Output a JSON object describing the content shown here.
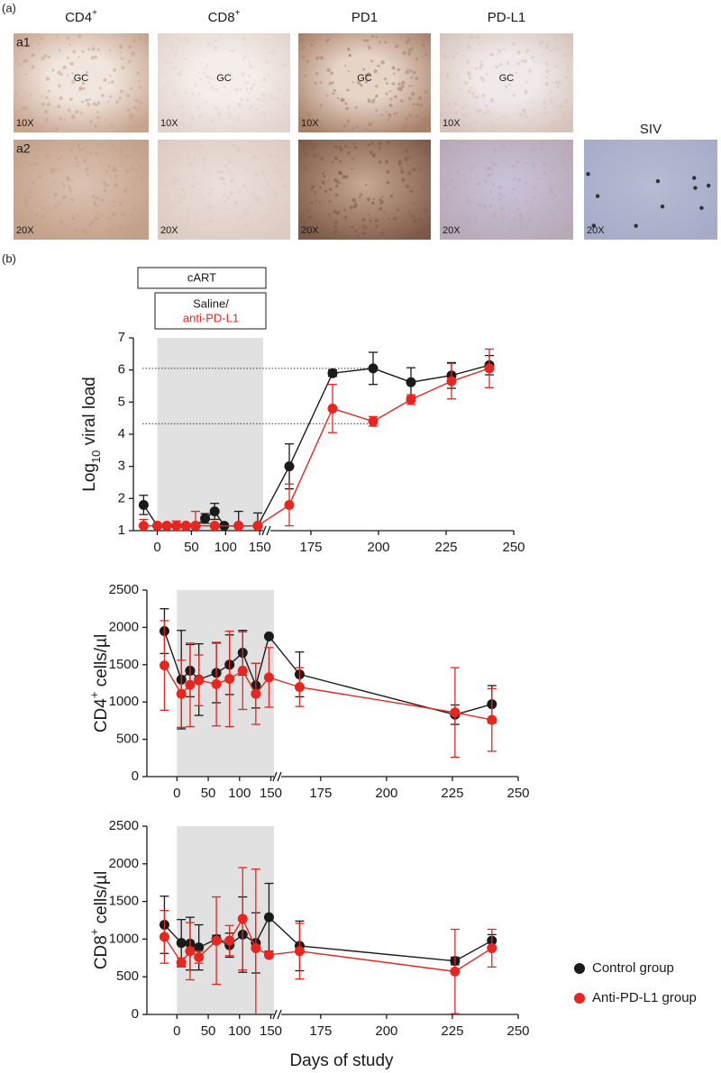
{
  "panel_a": {
    "label": "(a)",
    "columns": [
      {
        "text": "CD4",
        "sup": "+"
      },
      {
        "text": "CD8",
        "sup": "+"
      },
      {
        "text": "PD1"
      },
      {
        "text": "PD-L1"
      },
      {
        "text": "SIV"
      }
    ],
    "rows": [
      {
        "label": "a1",
        "images": [
          {
            "region": "GC",
            "magnification": "10X"
          },
          {
            "region": "GC",
            "magnification": "10X"
          },
          {
            "region": "GC",
            "magnification": "10X"
          },
          {
            "region": "GC",
            "magnification": "10X"
          }
        ]
      },
      {
        "label": "a2",
        "images": [
          {
            "magnification": "20X"
          },
          {
            "magnification": "20X"
          },
          {
            "magnification": "20X"
          },
          {
            "magnification": "20X"
          },
          {
            "magnification": "20X"
          }
        ]
      }
    ]
  },
  "panel_b": {
    "label": "(b)",
    "treatment": "cART",
    "arms": [
      "Saline/",
      "anti-PD-L1"
    ],
    "arm_colors": [
      "#1a1a1a",
      "#e8251f"
    ]
  },
  "chart_data": [
    {
      "type": "line",
      "y_label": {
        "text": "Log",
        "sub": "10",
        "after": " viral load"
      },
      "xlim": [
        -35,
        250
      ],
      "x_break": [
        155,
        160
      ],
      "xticks": [
        0,
        50,
        100,
        150,
        175,
        200,
        225,
        250
      ],
      "ylim": [
        1,
        7
      ],
      "yticks": [
        1,
        2,
        3,
        4,
        5,
        6,
        7
      ],
      "shade": [
        0,
        155
      ],
      "reference_lines": [
        6.05,
        4.33
      ],
      "series": [
        {
          "color": "#1a1a1a",
          "x": [
            -20,
            0,
            14,
            28,
            42,
            56,
            70,
            84,
            98,
            119,
            147,
            167,
            183,
            198,
            212,
            227,
            241
          ],
          "values": [
            1.8,
            1.15,
            1.15,
            1.15,
            1.15,
            1.15,
            1.38,
            1.6,
            1.15,
            1.15,
            1.15,
            3.0,
            5.9,
            6.05,
            5.62,
            5.83,
            6.15
          ],
          "errors": [
            0.3,
            0,
            0,
            0,
            0,
            0,
            0.15,
            0.25,
            0,
            0.45,
            0.4,
            0.7,
            0.1,
            0.5,
            0.45,
            0.4,
            0.3
          ]
        },
        {
          "color": "#e8251f",
          "x": [
            -20,
            0,
            14,
            28,
            42,
            56,
            84,
            119,
            147,
            167,
            183,
            198,
            212,
            227,
            241
          ],
          "values": [
            1.15,
            1.15,
            1.15,
            1.15,
            1.15,
            1.15,
            1.15,
            1.15,
            1.15,
            1.8,
            4.8,
            4.4,
            5.08,
            5.65,
            6.05
          ],
          "errors": [
            0.2,
            0,
            0,
            0.15,
            0,
            0.45,
            0,
            0,
            0,
            0.65,
            0.75,
            0.15,
            0.15,
            0.55,
            0.6
          ]
        }
      ]
    },
    {
      "type": "line",
      "y_label": {
        "text": "CD4",
        "sup": "+",
        "after": " cells/µl"
      },
      "xlim": [
        -48,
        250
      ],
      "x_break": [
        155,
        160
      ],
      "xticks": [
        0,
        50,
        100,
        150,
        175,
        200,
        225,
        250
      ],
      "ylim": [
        0,
        2500
      ],
      "yticks": [
        0,
        500,
        1000,
        1500,
        2000,
        2500
      ],
      "shade": [
        0,
        155
      ],
      "series": [
        {
          "color": "#1a1a1a",
          "x": [
            -20,
            7,
            21,
            35,
            63,
            84,
            105,
            126,
            147,
            167,
            226,
            240
          ],
          "values": [
            1950,
            1300,
            1420,
            1300,
            1390,
            1500,
            1660,
            1220,
            1880,
            1370,
            830,
            970
          ],
          "errors": [
            300,
            660,
            350,
            480,
            400,
            400,
            300,
            300,
            0,
            300,
            130,
            250
          ]
        },
        {
          "color": "#e8251f",
          "x": [
            -20,
            7,
            21,
            35,
            63,
            84,
            105,
            126,
            147,
            167,
            226,
            240
          ],
          "values": [
            1490,
            1110,
            1230,
            1290,
            1240,
            1310,
            1420,
            1110,
            1330,
            1200,
            860,
            760
          ],
          "errors": [
            600,
            450,
            560,
            340,
            560,
            640,
            520,
            410,
            400,
            260,
            600,
            420
          ]
        }
      ]
    },
    {
      "type": "line",
      "y_label": {
        "text": "CD8",
        "sup": "+",
        "after": " cells/µl"
      },
      "x_label": "Days of study",
      "xlim": [
        -48,
        250
      ],
      "x_break": [
        155,
        160
      ],
      "xticks": [
        0,
        50,
        100,
        150,
        175,
        200,
        225,
        250
      ],
      "ylim": [
        0,
        2500
      ],
      "yticks": [
        0,
        500,
        1000,
        1500,
        2000,
        2500
      ],
      "shade": [
        0,
        155
      ],
      "legend": "right",
      "series": [
        {
          "name": "Control group",
          "color": "#1a1a1a",
          "x": [
            -20,
            7,
            21,
            35,
            63,
            84,
            105,
            126,
            147,
            167,
            226,
            240
          ],
          "values": [
            1190,
            950,
            940,
            890,
            1000,
            920,
            1060,
            950,
            1290,
            910,
            710,
            980
          ],
          "errors": [
            380,
            310,
            350,
            300,
            50,
            160,
            500,
            400,
            450,
            330,
            50,
            80
          ]
        },
        {
          "name": "Anti-PD-L1 group",
          "color": "#e8251f",
          "x": [
            -20,
            7,
            21,
            35,
            63,
            84,
            105,
            126,
            147,
            167,
            226,
            240
          ],
          "values": [
            1030,
            690,
            840,
            760,
            980,
            980,
            1270,
            880,
            790,
            840,
            570,
            880
          ],
          "errors": [
            350,
            60,
            380,
            80,
            580,
            200,
            680,
            1050,
            0,
            370,
            560,
            250
          ]
        }
      ]
    }
  ]
}
